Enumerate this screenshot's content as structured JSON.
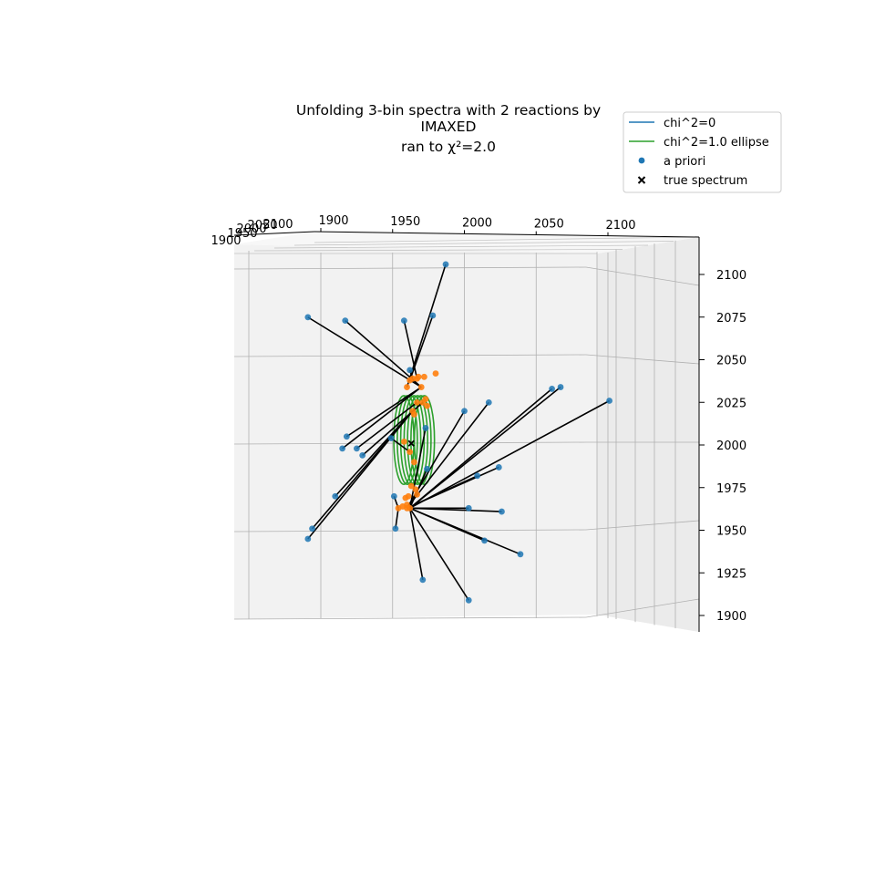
{
  "chart_data": {
    "type": "scatter",
    "projection": "3d",
    "title_lines": [
      "Unfolding 3-bin spectra with 2 reactions by",
      "IMAXED",
      "ran to χ²=2.0"
    ],
    "x_ticks": [
      "1900",
      "1950",
      "2000",
      "2050",
      "2100"
    ],
    "y_ticks": [
      "1900",
      "1950",
      "2000",
      "2050",
      "2100"
    ],
    "z_ticks": [
      "1900",
      "1925",
      "1950",
      "1975",
      "2000",
      "2025",
      "2050",
      "2075",
      "2100"
    ],
    "xlim": [
      1875,
      2125
    ],
    "zlim": [
      1890,
      2120
    ],
    "grid": true,
    "legend_position": "top-right",
    "legend": [
      {
        "label": "chi^2=0",
        "kind": "line",
        "color": "#1f77b4"
      },
      {
        "label": "chi^2=1.0 ellipse",
        "kind": "line",
        "color": "#2ca02c"
      },
      {
        "label": "a priori",
        "kind": "dot",
        "color": "#1f77b4"
      },
      {
        "label": "true spectrum",
        "kind": "cross",
        "color": "#000000"
      }
    ],
    "colors": {
      "a_priori": "#1f77b4",
      "unfolded": "#ff7f0e",
      "ellipse": "#2ca02c",
      "connector": "#000000",
      "chi0_line": "#1f77b4",
      "true_spectrum": "#000000"
    },
    "true_spectrum": {
      "x": 1963,
      "z": 2002
    },
    "ellipse_rings": 7,
    "ellipse_center": {
      "x": 1965,
      "z": 2004
    },
    "ellipse_halfwidth": 7,
    "ellipse_halfheight": 26,
    "ellipse_spread": 13,
    "a_priori": [
      {
        "x": 1891,
        "z": 2076
      },
      {
        "x": 1917,
        "z": 2074
      },
      {
        "x": 1958,
        "z": 2074
      },
      {
        "x": 1987,
        "z": 2107
      },
      {
        "x": 1978,
        "z": 2077
      },
      {
        "x": 1918,
        "z": 2006
      },
      {
        "x": 1915,
        "z": 1999
      },
      {
        "x": 1925,
        "z": 1999
      },
      {
        "x": 1929,
        "z": 1995
      },
      {
        "x": 1949,
        "z": 2005
      },
      {
        "x": 1951,
        "z": 1971
      },
      {
        "x": 1952,
        "z": 1952
      },
      {
        "x": 1962,
        "z": 2045
      },
      {
        "x": 1894,
        "z": 1952
      },
      {
        "x": 1891,
        "z": 1946
      },
      {
        "x": 1910,
        "z": 1971
      },
      {
        "x": 1973,
        "z": 2011
      },
      {
        "x": 1974,
        "z": 1987
      },
      {
        "x": 2000,
        "z": 2021
      },
      {
        "x": 2017,
        "z": 2026
      },
      {
        "x": 2009,
        "z": 1983
      },
      {
        "x": 2024,
        "z": 1988
      },
      {
        "x": 2061,
        "z": 2034
      },
      {
        "x": 2067,
        "z": 2035
      },
      {
        "x": 2101,
        "z": 2027
      },
      {
        "x": 2003,
        "z": 1964
      },
      {
        "x": 2026,
        "z": 1962
      },
      {
        "x": 2014,
        "z": 1945
      },
      {
        "x": 2039,
        "z": 1937
      },
      {
        "x": 1971,
        "z": 1922
      },
      {
        "x": 2003,
        "z": 1910
      }
    ],
    "unfolded": [
      {
        "x": 1964,
        "z": 2040
      },
      {
        "x": 1967,
        "z": 2040
      },
      {
        "x": 1962,
        "z": 2039
      },
      {
        "x": 1960,
        "z": 2035
      },
      {
        "x": 1968,
        "z": 2041
      },
      {
        "x": 1972,
        "z": 2041
      },
      {
        "x": 1980,
        "z": 2043
      },
      {
        "x": 1970,
        "z": 2035
      },
      {
        "x": 1967,
        "z": 2026
      },
      {
        "x": 1971,
        "z": 2026
      },
      {
        "x": 1974,
        "z": 2024
      },
      {
        "x": 1973,
        "z": 2028
      },
      {
        "x": 1964,
        "z": 2021
      },
      {
        "x": 1965,
        "z": 2019
      },
      {
        "x": 1958,
        "z": 2003
      },
      {
        "x": 1962,
        "z": 1997
      },
      {
        "x": 1965,
        "z": 1991
      },
      {
        "x": 1966,
        "z": 1975
      },
      {
        "x": 1961,
        "z": 1971
      },
      {
        "x": 1959,
        "z": 1970
      },
      {
        "x": 1960,
        "z": 1966
      },
      {
        "x": 1954,
        "z": 1964
      },
      {
        "x": 1957,
        "z": 1965
      },
      {
        "x": 1960,
        "z": 1964
      },
      {
        "x": 1962,
        "z": 1964
      },
      {
        "x": 1967,
        "z": 1972
      },
      {
        "x": 1963,
        "z": 1977
      }
    ],
    "connections": [
      [
        0,
        7
      ],
      [
        1,
        7
      ],
      [
        2,
        1
      ],
      [
        3,
        3
      ],
      [
        4,
        2
      ],
      [
        5,
        7
      ],
      [
        6,
        7
      ],
      [
        7,
        8
      ],
      [
        8,
        9
      ],
      [
        9,
        15
      ],
      [
        10,
        21
      ],
      [
        11,
        21
      ],
      [
        12,
        0
      ],
      [
        13,
        12
      ],
      [
        14,
        12
      ],
      [
        15,
        12
      ],
      [
        16,
        24
      ],
      [
        17,
        24
      ],
      [
        18,
        23
      ],
      [
        19,
        23
      ],
      [
        20,
        23
      ],
      [
        21,
        23
      ],
      [
        22,
        24
      ],
      [
        23,
        24
      ],
      [
        24,
        24
      ],
      [
        25,
        24
      ],
      [
        26,
        24
      ],
      [
        27,
        24
      ],
      [
        28,
        24
      ],
      [
        29,
        24
      ],
      [
        30,
        24
      ]
    ]
  }
}
